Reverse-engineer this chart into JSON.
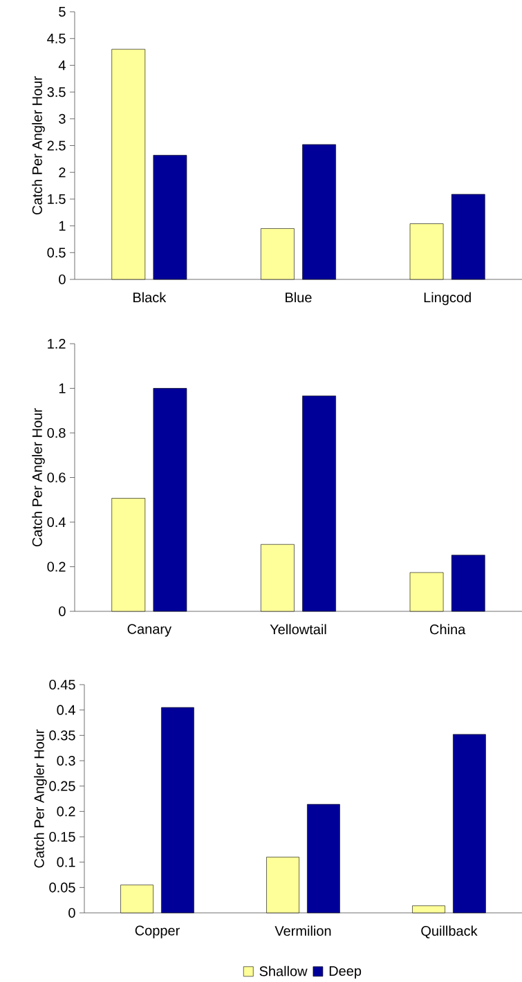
{
  "chart_data": [
    {
      "type": "bar",
      "categories": [
        "Black",
        "Blue",
        "Lingcod"
      ],
      "ylabel": "Catch Per Angler Hour",
      "ylim": [
        0,
        5
      ],
      "yticks": [
        0,
        0.5,
        1,
        1.5,
        2,
        2.5,
        3,
        3.5,
        4,
        4.5,
        5
      ],
      "series": [
        {
          "color": "#ffff99",
          "values": [
            4.3,
            0.95,
            1.04
          ]
        },
        {
          "color": "#000099",
          "values": [
            2.32,
            2.52,
            1.59
          ]
        }
      ]
    },
    {
      "type": "bar",
      "categories": [
        "Canary",
        "Yellowtail",
        "China"
      ],
      "ylabel": "Catch Per Angler Hour",
      "ylim": [
        0,
        1.2
      ],
      "yticks": [
        0,
        0.2,
        0.4,
        0.6,
        0.8,
        1,
        1.2
      ],
      "series": [
        {
          "color": "#ffff99",
          "values": [
            0.507,
            0.3,
            0.174
          ]
        },
        {
          "color": "#000099",
          "values": [
            1.0,
            0.966,
            0.252
          ]
        }
      ]
    },
    {
      "type": "bar",
      "categories": [
        "Copper",
        "Vermilion",
        "Quillback"
      ],
      "ylabel": "Catch Per Angler Hour",
      "ylim": [
        0,
        0.45
      ],
      "yticks": [
        0,
        0.05,
        0.1,
        0.15,
        0.2,
        0.25,
        0.3,
        0.35,
        0.4,
        0.45
      ],
      "legend": "bottom",
      "series": [
        {
          "name": "Shallow",
          "color": "#ffff99",
          "values": [
            0.055,
            0.11,
            0.014
          ]
        },
        {
          "name": "Deep",
          "color": "#000099",
          "values": [
            0.405,
            0.214,
            0.352
          ]
        }
      ]
    }
  ]
}
